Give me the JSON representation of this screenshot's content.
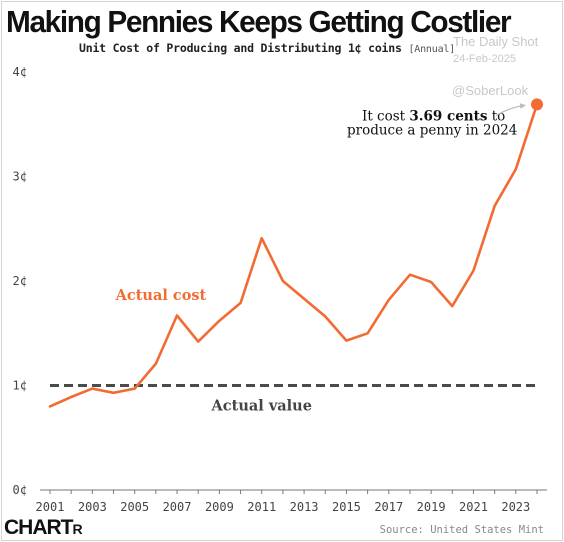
{
  "header": {
    "title": "Making Pennies Keeps Getting Costlier",
    "subtitle": "Unit Cost of Producing and Distributing 1¢ coins",
    "subtitle_tag": "[Annual]"
  },
  "watermark": {
    "source_name": "The Daily Shot",
    "date": "24-Feb-2025",
    "handle": "@SoberLook"
  },
  "footer": {
    "logo_main": "CHART",
    "logo_small": "R",
    "source": "Source: United States Mint"
  },
  "colors": {
    "series": "#f26b32",
    "reference": "#4a4a4a",
    "highlight_point": "#f26b32"
  },
  "chart_data": {
    "type": "line",
    "title": "Making Pennies Keeps Getting Costlier",
    "subtitle": "Unit Cost of Producing and Distributing 1¢ coins",
    "xlabel": "",
    "ylabel": "",
    "ylim": [
      0,
      4
    ],
    "xlim": [
      2001,
      2024
    ],
    "x_ticks": [
      "2001",
      "2003",
      "2005",
      "2007",
      "2009",
      "2011",
      "2013",
      "2015",
      "2017",
      "2019",
      "2021",
      "2023"
    ],
    "y_ticks": [
      {
        "value": 0,
        "label": "0¢"
      },
      {
        "value": 1,
        "label": "1¢"
      },
      {
        "value": 2,
        "label": "2¢"
      },
      {
        "value": 3,
        "label": "3¢"
      },
      {
        "value": 4,
        "label": "4¢"
      }
    ],
    "grid": false,
    "x": [
      2001,
      2002,
      2003,
      2004,
      2005,
      2006,
      2007,
      2008,
      2009,
      2010,
      2011,
      2012,
      2013,
      2014,
      2015,
      2016,
      2017,
      2018,
      2019,
      2020,
      2021,
      2022,
      2023,
      2024
    ],
    "series": [
      {
        "name": "Actual cost",
        "values": [
          0.8,
          0.89,
          0.97,
          0.93,
          0.97,
          1.21,
          1.67,
          1.42,
          1.62,
          1.79,
          2.41,
          2.0,
          1.83,
          1.66,
          1.43,
          1.5,
          1.82,
          2.06,
          1.99,
          1.76,
          2.1,
          2.72,
          3.07,
          3.69
        ]
      }
    ],
    "reference_line": {
      "name": "Actual value",
      "value": 1
    },
    "annotations": [
      {
        "x": 2024,
        "y": 3.69,
        "text_before": "It cost",
        "text_bold": "3.69 cents",
        "text_after": "to",
        "line2": "produce a penny in 2024"
      }
    ]
  }
}
